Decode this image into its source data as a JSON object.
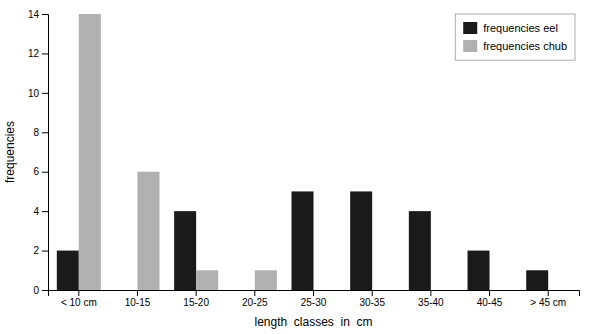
{
  "chart_data": {
    "type": "bar",
    "categories": [
      "< 10 cm",
      "10-15",
      "15-20",
      "20-25",
      "25-30",
      "30-35",
      "35-40",
      "40-45",
      "> 45 cm"
    ],
    "series": [
      {
        "name": "frequencies eel",
        "color": "#1a1a1a",
        "values": [
          2,
          0,
          4,
          0,
          5,
          5,
          4,
          2,
          1
        ]
      },
      {
        "name": "frequencies chub",
        "color": "#b0b0b0",
        "values": [
          14,
          6,
          1,
          1,
          0,
          0,
          0,
          0,
          0
        ]
      }
    ],
    "xlabel": "length  classes  in  cm",
    "ylabel": "frequencies",
    "ylim": [
      0,
      14
    ],
    "yticks": [
      0,
      2,
      4,
      6,
      8,
      10,
      12,
      14
    ],
    "legend": "upper right"
  }
}
